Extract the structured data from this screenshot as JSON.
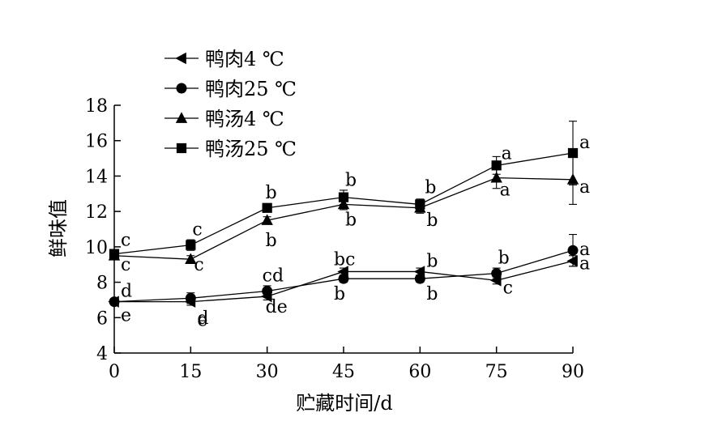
{
  "chart_data": {
    "type": "line",
    "xlabel": "贮藏时间/d",
    "ylabel": "鲜味值",
    "x": [
      0,
      15,
      30,
      45,
      60,
      75,
      90
    ],
    "xlim": [
      0,
      90
    ],
    "ylim": [
      4,
      18
    ],
    "xticks": [
      "0",
      "15",
      "30",
      "45",
      "60",
      "75",
      "90"
    ],
    "yticks": [
      "4",
      "6",
      "8",
      "10",
      "12",
      "14",
      "16",
      "18"
    ],
    "legend_position": "top-left",
    "grid": false,
    "series": [
      {
        "name": "鸭肉4 ℃",
        "marker": "triangle-left",
        "values": [
          6.9,
          6.9,
          7.2,
          8.6,
          8.6,
          8.1,
          9.2
        ],
        "errors": [
          0.1,
          0.2,
          0.2,
          0.2,
          0.2,
          0.2,
          0.3
        ],
        "labels": [
          "e",
          "e",
          "de",
          "bc",
          "b",
          "c",
          "a"
        ]
      },
      {
        "name": "鸭肉25 ℃",
        "marker": "circle",
        "values": [
          6.9,
          7.1,
          7.5,
          8.2,
          8.2,
          8.5,
          9.8
        ],
        "errors": [
          0.1,
          0.3,
          0.3,
          0.2,
          0.2,
          0.3,
          0.9
        ],
        "labels": [
          "d",
          "d",
          "cd",
          "b",
          "b",
          "b",
          "a"
        ]
      },
      {
        "name": "鸭汤4 ℃",
        "marker": "triangle-up",
        "values": [
          9.5,
          9.3,
          11.5,
          12.4,
          12.2,
          13.9,
          13.8
        ],
        "errors": [
          0.2,
          0.2,
          0.2,
          0.3,
          0.3,
          0.6,
          1.4
        ],
        "labels": [
          "c",
          "c",
          "b",
          "b",
          "b",
          "a",
          "a"
        ]
      },
      {
        "name": "鸭汤25 ℃",
        "marker": "square",
        "values": [
          9.6,
          10.1,
          12.2,
          12.8,
          12.4,
          14.6,
          15.3
        ],
        "errors": [
          0.2,
          0.3,
          0.2,
          0.4,
          0.3,
          0.5,
          1.8
        ],
        "labels": [
          "c",
          "c",
          "b",
          "b",
          "b",
          "a",
          "a"
        ]
      }
    ]
  }
}
